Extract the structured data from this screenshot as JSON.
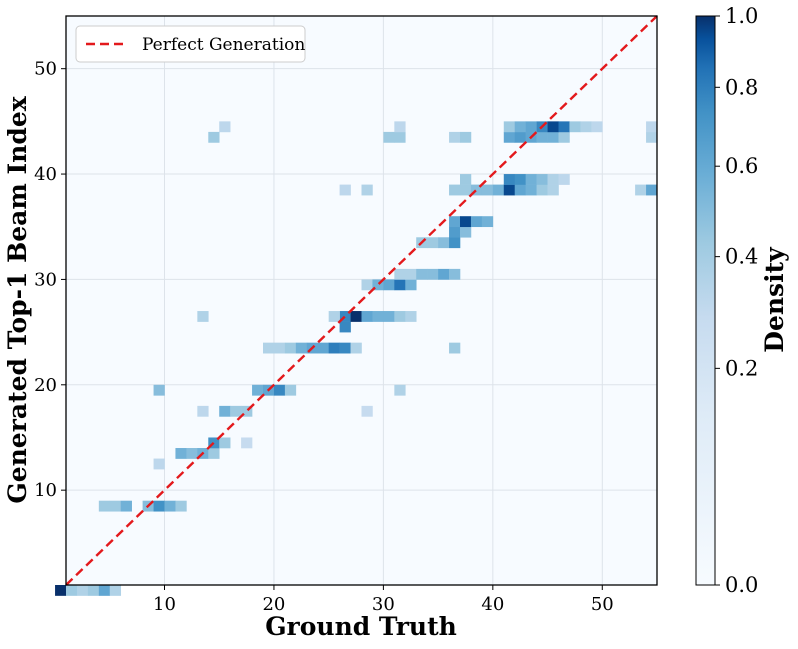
{
  "chart_data": {
    "type": "heatmap",
    "xlabel": "Ground Truth",
    "ylabel": "Generated Top-1 Beam Index",
    "xlim": [
      1,
      55
    ],
    "ylim": [
      1,
      55
    ],
    "xticks": [
      "10",
      "20",
      "30",
      "40",
      "50"
    ],
    "yticks": [
      "10",
      "20",
      "30",
      "40",
      "50"
    ],
    "grid": true,
    "legend": {
      "position": "top-left",
      "label": "Perfect Generation",
      "line_color": "#e3191c",
      "line_style": "dashed"
    },
    "reference_line": {
      "x": [
        1,
        55
      ],
      "y": [
        1,
        55
      ]
    },
    "colorbar": {
      "label": "Density",
      "ticks": [
        "0.0",
        "0.2",
        "0.4",
        "0.6",
        "0.8",
        "1.0"
      ],
      "scale": "power",
      "colormap": "Blues",
      "colors": [
        "#f7fbff",
        "#c6dbef",
        "#6baed6",
        "#2171b5",
        "#08306b"
      ]
    },
    "cells": [
      [
        1,
        1,
        1.0
      ],
      [
        2,
        1,
        0.2
      ],
      [
        3,
        1,
        0.15
      ],
      [
        4,
        1,
        0.2
      ],
      [
        5,
        1,
        0.35
      ],
      [
        6,
        1,
        0.15
      ],
      [
        5,
        9,
        0.2
      ],
      [
        6,
        9,
        0.2
      ],
      [
        7,
        9,
        0.3
      ],
      [
        9,
        9,
        0.25
      ],
      [
        10,
        9,
        0.45
      ],
      [
        11,
        9,
        0.3
      ],
      [
        12,
        9,
        0.2
      ],
      [
        10,
        13,
        0.12
      ],
      [
        12,
        14,
        0.3
      ],
      [
        13,
        14,
        0.25
      ],
      [
        14,
        14,
        0.3
      ],
      [
        15,
        14,
        0.2
      ],
      [
        15,
        15,
        0.45
      ],
      [
        16,
        15,
        0.2
      ],
      [
        18,
        15,
        0.1
      ],
      [
        14,
        18,
        0.12
      ],
      [
        16,
        18,
        0.3
      ],
      [
        17,
        18,
        0.2
      ],
      [
        18,
        18,
        0.2
      ],
      [
        29,
        18,
        0.1
      ],
      [
        10,
        20,
        0.25
      ],
      [
        19,
        20,
        0.3
      ],
      [
        20,
        20,
        0.35
      ],
      [
        21,
        20,
        0.5
      ],
      [
        22,
        20,
        0.2
      ],
      [
        32,
        20,
        0.15
      ],
      [
        20,
        24,
        0.15
      ],
      [
        21,
        24,
        0.15
      ],
      [
        22,
        24,
        0.2
      ],
      [
        23,
        24,
        0.3
      ],
      [
        24,
        24,
        0.35
      ],
      [
        25,
        24,
        0.35
      ],
      [
        26,
        24,
        0.55
      ],
      [
        27,
        24,
        0.5
      ],
      [
        28,
        24,
        0.15
      ],
      [
        37,
        24,
        0.2
      ],
      [
        27,
        26,
        0.5
      ],
      [
        27,
        27,
        0.5
      ],
      [
        14,
        27,
        0.15
      ],
      [
        26,
        27,
        0.15
      ],
      [
        28,
        27,
        1.0
      ],
      [
        29,
        27,
        0.35
      ],
      [
        30,
        27,
        0.3
      ],
      [
        31,
        27,
        0.3
      ],
      [
        32,
        27,
        0.2
      ],
      [
        33,
        27,
        0.15
      ],
      [
        29,
        30,
        0.15
      ],
      [
        30,
        30,
        0.3
      ],
      [
        31,
        30,
        0.35
      ],
      [
        32,
        30,
        0.6
      ],
      [
        33,
        30,
        0.3
      ],
      [
        32,
        31,
        0.15
      ],
      [
        33,
        31,
        0.15
      ],
      [
        34,
        31,
        0.25
      ],
      [
        35,
        31,
        0.25
      ],
      [
        36,
        31,
        0.35
      ],
      [
        37,
        31,
        0.25
      ],
      [
        34,
        34,
        0.2
      ],
      [
        35,
        34,
        0.2
      ],
      [
        36,
        34,
        0.25
      ],
      [
        37,
        34,
        0.45
      ],
      [
        37,
        35,
        0.4
      ],
      [
        38,
        35,
        0.25
      ],
      [
        37,
        36,
        0.35
      ],
      [
        38,
        36,
        0.85
      ],
      [
        39,
        36,
        0.35
      ],
      [
        40,
        36,
        0.3
      ],
      [
        27,
        39,
        0.12
      ],
      [
        29,
        39,
        0.15
      ],
      [
        37,
        39,
        0.2
      ],
      [
        38,
        39,
        0.2
      ],
      [
        39,
        39,
        0.25
      ],
      [
        40,
        39,
        0.25
      ],
      [
        41,
        39,
        0.3
      ],
      [
        42,
        39,
        0.85
      ],
      [
        43,
        39,
        0.35
      ],
      [
        44,
        39,
        0.3
      ],
      [
        45,
        39,
        0.2
      ],
      [
        46,
        39,
        0.15
      ],
      [
        54,
        39,
        0.15
      ],
      [
        55,
        39,
        0.35
      ],
      [
        38,
        40,
        0.2
      ],
      [
        42,
        40,
        0.5
      ],
      [
        43,
        40,
        0.45
      ],
      [
        44,
        40,
        0.3
      ],
      [
        45,
        40,
        0.25
      ],
      [
        46,
        40,
        0.15
      ],
      [
        47,
        40,
        0.12
      ],
      [
        15,
        44,
        0.2
      ],
      [
        31,
        44,
        0.2
      ],
      [
        32,
        44,
        0.2
      ],
      [
        37,
        44,
        0.15
      ],
      [
        38,
        44,
        0.2
      ],
      [
        42,
        44,
        0.35
      ],
      [
        43,
        44,
        0.4
      ],
      [
        44,
        44,
        0.35
      ],
      [
        45,
        44,
        0.3
      ],
      [
        46,
        44,
        0.3
      ],
      [
        47,
        44,
        0.2
      ],
      [
        55,
        44,
        0.15
      ],
      [
        16,
        45,
        0.12
      ],
      [
        32,
        45,
        0.12
      ],
      [
        42,
        45,
        0.2
      ],
      [
        43,
        45,
        0.3
      ],
      [
        44,
        45,
        0.35
      ],
      [
        45,
        45,
        0.5
      ],
      [
        46,
        45,
        0.85
      ],
      [
        47,
        45,
        0.6
      ],
      [
        48,
        45,
        0.2
      ],
      [
        49,
        45,
        0.15
      ],
      [
        50,
        45,
        0.12
      ],
      [
        55,
        45,
        0.12
      ]
    ]
  }
}
